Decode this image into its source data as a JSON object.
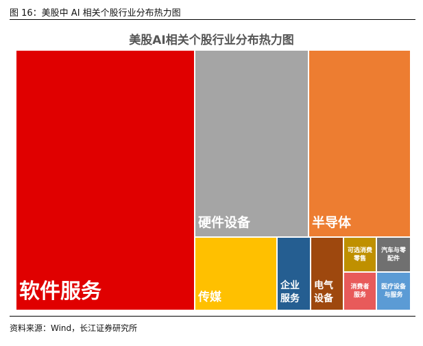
{
  "figure_title": "图 16：美股中 AI 相关个股行业分布热力图",
  "source": "资料来源：Wind，长江证券研究所",
  "chart_data": {
    "type": "treemap",
    "title": "美股AI相关个股行业分布热力图",
    "unit": "approximate share of area (%)",
    "items": [
      {
        "label": "软件服务",
        "value": 45.7,
        "color": "#e00000"
      },
      {
        "label": "硬件设备",
        "value": 20.8,
        "color": "#a5a5a5"
      },
      {
        "label": "半导体",
        "value": 18.6,
        "color": "#ed7d31"
      },
      {
        "label": "传媒",
        "value": 5.8,
        "color": "#ffc000"
      },
      {
        "label": "企业\n服务",
        "value": 2.3,
        "color": "#255e91"
      },
      {
        "label": "电气\n设备",
        "value": 2.3,
        "color": "#9e480e"
      },
      {
        "label": "可选消费\n零售",
        "value": 1.05,
        "color": "#bf9000"
      },
      {
        "label": "汽车与零\n配件",
        "value": 1.1,
        "color": "#707070"
      },
      {
        "label": "消费者\n服务",
        "value": 1.16,
        "color": "#e85a5a"
      },
      {
        "label": "医疗设备\n与服务",
        "value": 1.21,
        "color": "#5b9bd5"
      }
    ]
  }
}
